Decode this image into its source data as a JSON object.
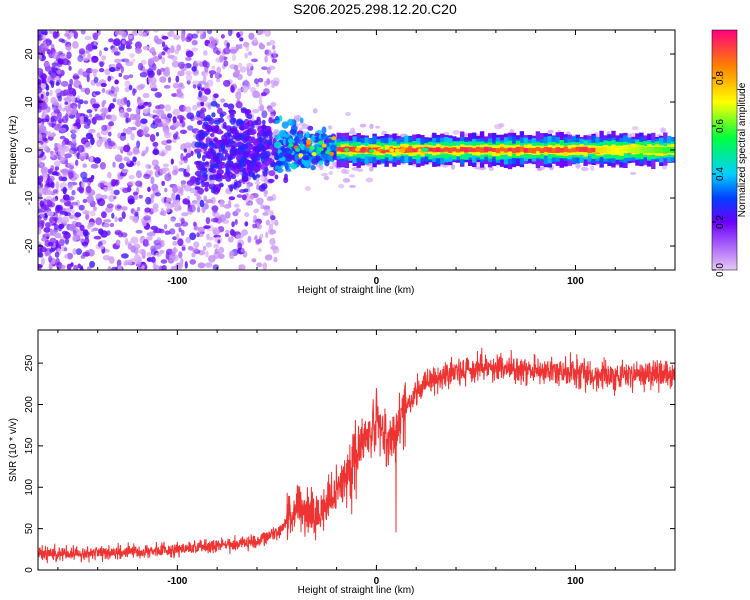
{
  "title": "S206.2025.298.12.20.C20",
  "chart_data": [
    {
      "type": "heatmap",
      "xlabel": "Height of straight line (km)",
      "ylabel": "Frequency (Hz)",
      "xlim": [
        -170,
        150
      ],
      "ylim": [
        -25,
        25
      ],
      "xticks": [
        -100,
        0,
        100
      ],
      "yticks": [
        -20,
        -10,
        0,
        10,
        20
      ],
      "colorbar": {
        "label": "Normalized spectral amplitude",
        "range": [
          0,
          1
        ],
        "ticks": [
          0.0,
          0.2,
          0.4,
          0.6,
          0.8
        ],
        "stops": [
          {
            "v": 0.0,
            "color": "#e9c8f5"
          },
          {
            "v": 0.2,
            "color": "#6a00ff"
          },
          {
            "v": 0.3,
            "color": "#0040ff"
          },
          {
            "v": 0.4,
            "color": "#00d0ff"
          },
          {
            "v": 0.55,
            "color": "#00ff40"
          },
          {
            "v": 0.7,
            "color": "#ffff00"
          },
          {
            "v": 0.85,
            "color": "#ff8000"
          },
          {
            "v": 1.0,
            "color": "#ff0080"
          }
        ]
      },
      "ridge": {
        "frequency_hz": 0,
        "start_km": -20,
        "end_km": 150
      }
    },
    {
      "type": "line",
      "xlabel": "Height of straight line (km)",
      "ylabel": "SNR (10 * v/v)",
      "xlim": [
        -170,
        150
      ],
      "ylim": [
        0,
        290
      ],
      "xticks": [
        -100,
        0,
        100
      ],
      "yticks": [
        0,
        50,
        100,
        150,
        200,
        250
      ],
      "color": "#ee3333",
      "series": [
        {
          "name": "SNR",
          "x": [
            -170,
            -150,
            -120,
            -100,
            -90,
            -80,
            -70,
            -60,
            -50,
            -45,
            -40,
            -35,
            -30,
            -25,
            -20,
            -15,
            -10,
            -5,
            0,
            5,
            10,
            15,
            20,
            30,
            40,
            60,
            80,
            100,
            120,
            150
          ],
          "values": [
            20,
            20,
            22,
            25,
            28,
            30,
            32,
            35,
            45,
            60,
            75,
            70,
            65,
            80,
            95,
            120,
            140,
            160,
            180,
            150,
            170,
            200,
            215,
            230,
            240,
            245,
            240,
            238,
            235,
            235
          ]
        }
      ]
    }
  ]
}
